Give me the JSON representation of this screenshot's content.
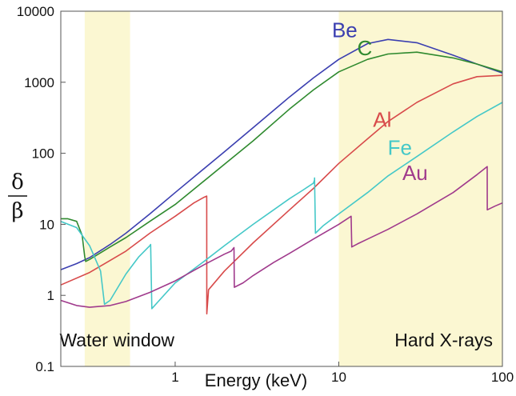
{
  "chart_data": {
    "type": "line",
    "xlabel": "Energy (keV)",
    "ylabel": {
      "numerator": "δ",
      "denominator": "β"
    },
    "x_scale": "log",
    "y_scale": "log",
    "xlim": [
      0.2,
      100
    ],
    "ylim": [
      0.1,
      10000
    ],
    "x_tick_labels": [
      {
        "value": 1,
        "label": "1"
      },
      {
        "value": 10,
        "label": "10"
      },
      {
        "value": 100,
        "label": "100"
      }
    ],
    "y_tick_labels": [
      {
        "value": 0.1,
        "label": "0.1"
      },
      {
        "value": 1,
        "label": "1"
      },
      {
        "value": 10,
        "label": "10"
      },
      {
        "value": 100,
        "label": "100"
      },
      {
        "value": 1000,
        "label": "1000"
      },
      {
        "value": 10000,
        "label": "10000"
      }
    ],
    "grid": false,
    "bands": [
      {
        "label": "Water window",
        "x_range": [
          0.28,
          0.53
        ],
        "color": "#fbf7d2"
      },
      {
        "label": "Hard X-rays",
        "x_range": [
          10,
          100
        ],
        "color": "#fbf7d2"
      }
    ],
    "series": [
      {
        "name": "Be",
        "color": "#3b3fb0",
        "x": [
          0.2,
          0.25,
          0.3,
          0.4,
          0.5,
          0.7,
          1,
          2,
          3,
          5,
          7,
          10,
          15,
          20,
          30,
          50,
          70,
          100
        ],
        "y": [
          2.3,
          2.8,
          3.4,
          5.2,
          7.5,
          14,
          28,
          105,
          230,
          620,
          1150,
          2100,
          3500,
          4000,
          3600,
          2400,
          1800,
          1350
        ]
      },
      {
        "name": "C",
        "color": "#2f8a2f",
        "x": [
          0.2,
          0.22,
          0.25,
          0.27,
          0.28,
          0.284,
          0.3,
          0.4,
          0.5,
          0.7,
          1,
          2,
          3,
          5,
          7,
          10,
          15,
          20,
          30,
          50,
          70,
          100
        ],
        "y": [
          12,
          12,
          11,
          7,
          3.5,
          3.0,
          3.2,
          4.8,
          6.5,
          11,
          19,
          70,
          150,
          420,
          780,
          1400,
          2100,
          2500,
          2650,
          2200,
          1800,
          1400
        ]
      },
      {
        "name": "Al",
        "color": "#d84b4b",
        "x": [
          0.2,
          0.3,
          0.5,
          0.7,
          1,
          1.3,
          1.5,
          1.559,
          1.56,
          1.6,
          2,
          3,
          5,
          7,
          10,
          15,
          20,
          30,
          50,
          70,
          100
        ],
        "y": [
          1.4,
          2.1,
          4.2,
          7.5,
          13,
          20,
          24,
          25,
          0.55,
          1.2,
          2.2,
          5.5,
          16,
          32,
          72,
          160,
          280,
          520,
          950,
          1200,
          1250
        ]
      },
      {
        "name": "Fe",
        "color": "#45c8c8",
        "x": [
          0.2,
          0.25,
          0.3,
          0.35,
          0.37,
          0.4,
          0.5,
          0.6,
          0.7,
          0.708,
          0.72,
          0.8,
          1,
          1.5,
          2,
          3,
          4,
          5,
          6,
          7,
          7.1,
          7.112,
          7.2,
          8,
          10,
          15,
          20,
          30,
          50,
          70,
          100
        ],
        "y": [
          11,
          9,
          5,
          2.2,
          0.75,
          0.85,
          2.0,
          3.5,
          5.0,
          5.2,
          0.65,
          0.85,
          1.5,
          3.0,
          5.0,
          10,
          16,
          23,
          30,
          38,
          42,
          45,
          7.5,
          9.5,
          14,
          28,
          48,
          90,
          200,
          330,
          520
        ]
      },
      {
        "name": "Au",
        "color": "#a03a8c",
        "x": [
          0.2,
          0.25,
          0.3,
          0.4,
          0.5,
          0.7,
          1,
          1.5,
          2,
          2.2,
          2.29,
          2.3,
          2.6,
          3,
          4,
          5,
          7,
          10,
          11.9,
          12.0,
          13,
          15,
          20,
          30,
          50,
          70,
          80.7,
          80.8,
          90,
          100
        ],
        "y": [
          0.85,
          0.72,
          0.68,
          0.72,
          0.82,
          1.1,
          1.6,
          2.7,
          3.8,
          4.2,
          4.7,
          1.3,
          1.5,
          1.9,
          2.9,
          3.9,
          6.2,
          10,
          13,
          4.8,
          5.3,
          6.2,
          8.5,
          14,
          28,
          50,
          65,
          16,
          18,
          20
        ]
      }
    ],
    "series_labels": [
      {
        "name": "Be",
        "at": [
          13,
          4300
        ]
      },
      {
        "name": "C",
        "at": [
          16,
          2400
        ]
      },
      {
        "name": "Al",
        "at": [
          21,
          235
        ]
      },
      {
        "name": "Fe",
        "at": [
          28,
          95
        ]
      },
      {
        "name": "Au",
        "at": [
          35,
          42
        ]
      }
    ]
  }
}
